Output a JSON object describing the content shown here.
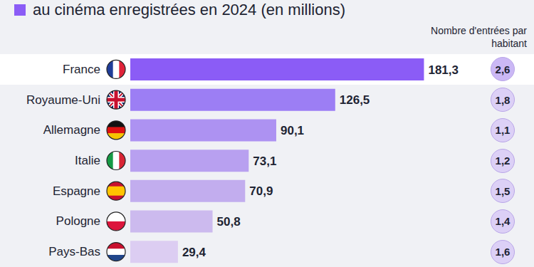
{
  "chart_data": {
    "type": "bar",
    "orientation": "horizontal",
    "title": "au cinéma enregistrées en 2024 (en millions)",
    "categories": [
      "France",
      "Royaume-Uni",
      "Allemagne",
      "Italie",
      "Espagne",
      "Pologne",
      "Pays-Bas"
    ],
    "values": [
      181.3,
      126.5,
      90.1,
      73.1,
      70.9,
      50.8,
      29.4
    ],
    "value_labels": [
      "181,3",
      "126,5",
      "90,1",
      "73,1",
      "70,9",
      "50,8",
      "29,4"
    ],
    "colors": [
      "#8b5cf6",
      "#9c7ef4",
      "#ad92f2",
      "#b8a0f0",
      "#c2adee",
      "#ccbaee",
      "#dccdf2"
    ],
    "color": "#8b5cf6",
    "data_labels": true,
    "tick_labels": false,
    "xlim": [
      0,
      200
    ],
    "per_capita_title": "Nombre d'entrées par habitant",
    "per_capita": [
      2.6,
      1.8,
      1.1,
      1.2,
      1.5,
      1.4,
      1.6
    ],
    "per_capita_labels": [
      "2,6",
      "1,8",
      "1,1",
      "1,2",
      "1,5",
      "1,4",
      "1,6"
    ]
  }
}
